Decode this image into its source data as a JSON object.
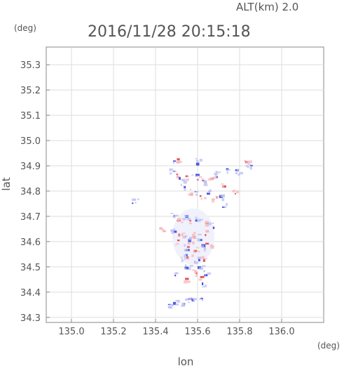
{
  "header": {
    "altitude_label": "ALT(km) 2.0",
    "timestamp": "2016/11/28 20:15:18"
  },
  "axes": {
    "y_unit": "(deg)",
    "x_unit": "(deg)",
    "y_label": "lat",
    "x_label": "lon",
    "x_ticks": [
      "135.0",
      "135.2",
      "135.4",
      "135.6",
      "135.8",
      "136.0"
    ],
    "y_ticks": [
      "35.3",
      "35.2",
      "35.1",
      "35.0",
      "34.9",
      "34.8",
      "34.7",
      "34.6",
      "34.5",
      "34.4",
      "34.3"
    ]
  },
  "chart_data": {
    "type": "heatmap",
    "description_free": true,
    "x_range": [
      134.88,
      136.2
    ],
    "y_range": [
      34.28,
      35.37
    ],
    "x_ticks": [
      135.0,
      135.2,
      135.4,
      135.6,
      135.8,
      136.0
    ],
    "y_ticks": [
      35.3,
      35.2,
      35.1,
      35.0,
      34.9,
      34.8,
      34.7,
      34.6,
      34.5,
      34.4,
      34.3
    ],
    "grid": true,
    "colors": {
      "positive": "#e0404a",
      "negative": "#3a45d8",
      "positive_light": "#f4b8bc",
      "negative_light": "#b8bcf0"
    },
    "points": [
      {
        "lon": 135.49,
        "lat": 34.92,
        "v": -1
      },
      {
        "lon": 135.51,
        "lat": 34.92,
        "v": 1
      },
      {
        "lon": 135.47,
        "lat": 34.88,
        "v": -1
      },
      {
        "lon": 135.5,
        "lat": 34.86,
        "v": 1
      },
      {
        "lon": 135.52,
        "lat": 34.85,
        "v": -1
      },
      {
        "lon": 135.55,
        "lat": 34.86,
        "v": 1
      },
      {
        "lon": 135.58,
        "lat": 34.87,
        "v": -1
      },
      {
        "lon": 135.6,
        "lat": 34.92,
        "v": -1
      },
      {
        "lon": 135.61,
        "lat": 34.85,
        "v": 1
      },
      {
        "lon": 135.63,
        "lat": 34.84,
        "v": -1
      },
      {
        "lon": 135.66,
        "lat": 34.86,
        "v": 1
      },
      {
        "lon": 135.69,
        "lat": 34.87,
        "v": -1
      },
      {
        "lon": 135.72,
        "lat": 34.83,
        "v": 1
      },
      {
        "lon": 135.74,
        "lat": 34.88,
        "v": -1
      },
      {
        "lon": 135.77,
        "lat": 34.8,
        "v": 1
      },
      {
        "lon": 135.79,
        "lat": 34.88,
        "v": -1
      },
      {
        "lon": 135.83,
        "lat": 34.92,
        "v": 1
      },
      {
        "lon": 135.84,
        "lat": 34.9,
        "v": -1
      },
      {
        "lon": 135.53,
        "lat": 34.82,
        "v": -1
      },
      {
        "lon": 135.56,
        "lat": 34.8,
        "v": 1
      },
      {
        "lon": 135.59,
        "lat": 34.79,
        "v": -1
      },
      {
        "lon": 135.62,
        "lat": 34.78,
        "v": 1
      },
      {
        "lon": 135.65,
        "lat": 34.8,
        "v": -1
      },
      {
        "lon": 135.68,
        "lat": 34.77,
        "v": 1
      },
      {
        "lon": 135.71,
        "lat": 34.78,
        "v": -1
      },
      {
        "lon": 135.73,
        "lat": 34.75,
        "v": -1
      },
      {
        "lon": 135.3,
        "lat": 34.76,
        "v": -1
      },
      {
        "lon": 135.48,
        "lat": 34.71,
        "v": -1
      },
      {
        "lon": 135.51,
        "lat": 34.69,
        "v": 1
      },
      {
        "lon": 135.54,
        "lat": 34.7,
        "v": -1
      },
      {
        "lon": 135.57,
        "lat": 34.68,
        "v": 1
      },
      {
        "lon": 135.6,
        "lat": 34.69,
        "v": -1
      },
      {
        "lon": 135.63,
        "lat": 34.68,
        "v": 1
      },
      {
        "lon": 135.66,
        "lat": 34.67,
        "v": -1
      },
      {
        "lon": 135.43,
        "lat": 34.65,
        "v": 1
      },
      {
        "lon": 135.48,
        "lat": 34.64,
        "v": -1
      },
      {
        "lon": 135.52,
        "lat": 34.63,
        "v": 1
      },
      {
        "lon": 135.55,
        "lat": 34.62,
        "v": -1
      },
      {
        "lon": 135.58,
        "lat": 34.63,
        "v": 1
      },
      {
        "lon": 135.61,
        "lat": 34.62,
        "v": -1
      },
      {
        "lon": 135.64,
        "lat": 34.64,
        "v": 1
      },
      {
        "lon": 135.5,
        "lat": 34.6,
        "v": 1
      },
      {
        "lon": 135.53,
        "lat": 34.58,
        "v": -1
      },
      {
        "lon": 135.56,
        "lat": 34.59,
        "v": 1
      },
      {
        "lon": 135.59,
        "lat": 34.57,
        "v": 1
      },
      {
        "lon": 135.62,
        "lat": 34.58,
        "v": -1
      },
      {
        "lon": 135.65,
        "lat": 34.59,
        "v": 1
      },
      {
        "lon": 135.53,
        "lat": 34.54,
        "v": -1
      },
      {
        "lon": 135.56,
        "lat": 34.55,
        "v": 1
      },
      {
        "lon": 135.59,
        "lat": 34.53,
        "v": -1
      },
      {
        "lon": 135.62,
        "lat": 34.54,
        "v": 1
      },
      {
        "lon": 135.55,
        "lat": 34.5,
        "v": -1
      },
      {
        "lon": 135.58,
        "lat": 34.49,
        "v": 1
      },
      {
        "lon": 135.61,
        "lat": 34.5,
        "v": -1
      },
      {
        "lon": 135.64,
        "lat": 34.48,
        "v": -1
      },
      {
        "lon": 135.5,
        "lat": 34.47,
        "v": -1
      },
      {
        "lon": 135.54,
        "lat": 34.45,
        "v": 1
      },
      {
        "lon": 135.6,
        "lat": 34.46,
        "v": 1
      },
      {
        "lon": 135.63,
        "lat": 34.43,
        "v": -1
      },
      {
        "lon": 135.46,
        "lat": 34.35,
        "v": -1
      },
      {
        "lon": 135.49,
        "lat": 34.36,
        "v": -1
      },
      {
        "lon": 135.52,
        "lat": 34.36,
        "v": -1
      },
      {
        "lon": 135.55,
        "lat": 34.37,
        "v": -1
      },
      {
        "lon": 135.58,
        "lat": 34.37,
        "v": -1
      },
      {
        "lon": 135.61,
        "lat": 34.38,
        "v": -1
      }
    ]
  }
}
